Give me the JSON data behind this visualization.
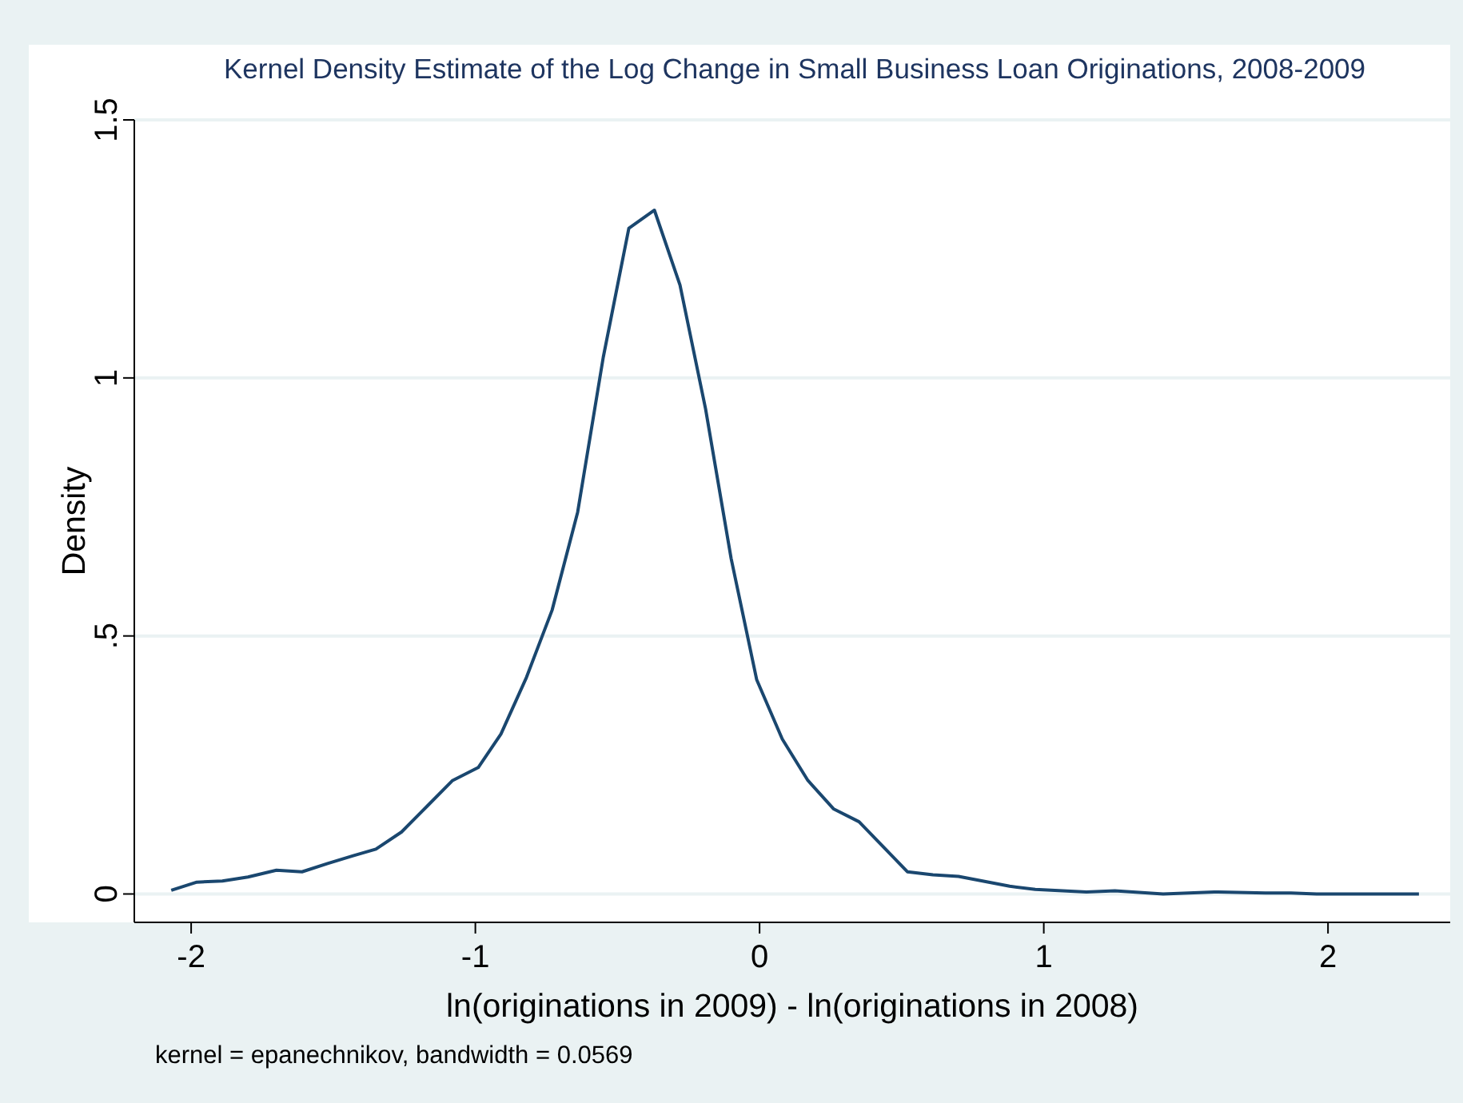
{
  "chart_data": {
    "type": "line",
    "title": "Kernel Density Estimate of the Log Change in Small Business Loan Originations, 2008-2009",
    "xlabel": "ln(originations in 2009) - ln(originations in 2008)",
    "ylabel": "Density",
    "annotations": [
      "kernel = epanechnikov, bandwidth = 0.0569"
    ],
    "series": [
      {
        "color": "#1a476f",
        "x": [
          -2.07,
          -1.98,
          -1.89,
          -1.8,
          -1.7,
          -1.61,
          -1.52,
          -1.43,
          -1.35,
          -1.26,
          -1.17,
          -1.08,
          -0.99,
          -0.91,
          -0.82,
          -0.73,
          -0.64,
          -0.55,
          -0.46,
          -0.37,
          -0.28,
          -0.19,
          -0.1,
          -0.01,
          0.08,
          0.17,
          0.26,
          0.35,
          0.52,
          0.61,
          0.7,
          0.88,
          0.97,
          1.15,
          1.25,
          1.42,
          1.6,
          1.78,
          1.87,
          1.96,
          2.05,
          2.32
        ],
        "values": [
          0.007,
          0.023,
          0.025,
          0.033,
          0.046,
          0.043,
          0.059,
          0.074,
          0.087,
          0.12,
          0.17,
          0.22,
          0.245,
          0.31,
          0.42,
          0.55,
          0.74,
          1.04,
          1.29,
          1.325,
          1.18,
          0.94,
          0.65,
          0.415,
          0.3,
          0.22,
          0.165,
          0.14,
          0.043,
          0.037,
          0.034,
          0.015,
          0.009,
          0.004,
          0.006,
          0,
          0.004,
          0.002,
          0.002,
          0,
          0,
          0
        ]
      }
    ],
    "xlim": [
      -2.2,
      2.43
    ],
    "ylim": [
      -0.055,
      1.5
    ],
    "xticks": [
      -2,
      -1,
      0,
      1,
      2
    ],
    "yticks": [
      0,
      {
        "value": 0.5,
        "label": ".5"
      },
      1,
      1.5
    ],
    "grid": "y"
  }
}
